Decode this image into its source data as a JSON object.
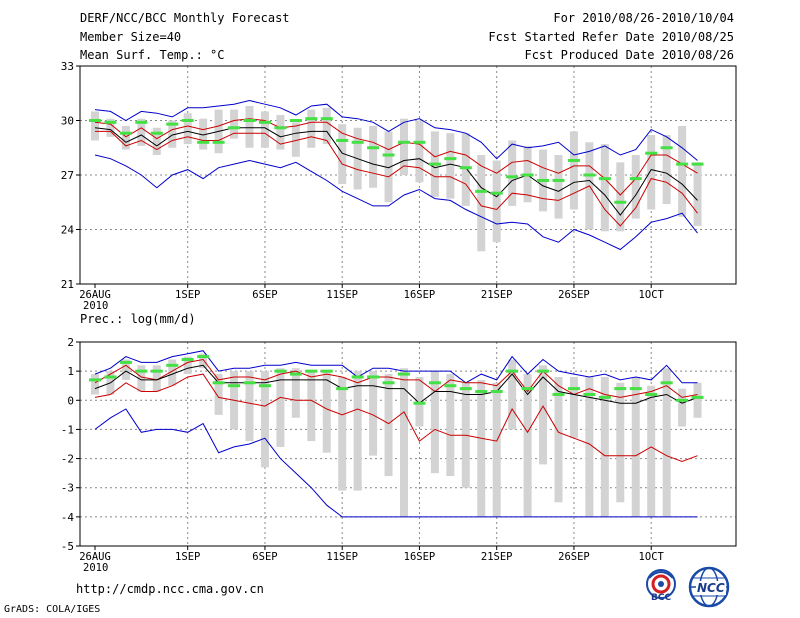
{
  "header": {
    "title": "DERF/NCC/BCC Monthly Forecast",
    "member_size": "Member Size=40",
    "panel1_label": "Mean Surf. Temp.: °C",
    "period": "For 2010/08/26-2010/10/04",
    "started": "Fcst Started Refer Date 2010/08/25",
    "produced": "Fcst Produced Date 2010/08/26"
  },
  "footer": {
    "url": "http://cmdp.ncc.cma.gov.cn",
    "grads": "GrADS: COLA/IGES",
    "logo1_text": "BCC",
    "logo2_text": "NCC"
  },
  "colors": {
    "box": "#d3d3d3",
    "median": "#44e044",
    "mean": "#000000",
    "sd": "#cc0000",
    "envelope": "#0000cc",
    "grid": "#888888"
  },
  "chart_data": [
    {
      "type": "line",
      "title": "Mean Surf. Temp.: °C",
      "xlabel": "",
      "ylabel": "",
      "ylim": [
        21,
        33
      ],
      "yticks": [
        21,
        24,
        27,
        30,
        33
      ],
      "xticks": [
        {
          "day": 0,
          "label": "26AUG",
          "sub": "2010"
        },
        {
          "day": 6,
          "label": "1SEP"
        },
        {
          "day": 11,
          "label": "6SEP"
        },
        {
          "day": 16,
          "label": "11SEP"
        },
        {
          "day": 21,
          "label": "16SEP"
        },
        {
          "day": 26,
          "label": "21SEP"
        },
        {
          "day": 31,
          "label": "26SEP"
        },
        {
          "day": 36,
          "label": "1OCT"
        }
      ],
      "x": [
        0,
        1,
        2,
        3,
        4,
        5,
        6,
        7,
        8,
        9,
        10,
        11,
        12,
        13,
        14,
        15,
        16,
        17,
        18,
        19,
        20,
        21,
        22,
        23,
        24,
        25,
        26,
        27,
        28,
        29,
        30,
        31,
        32,
        33,
        34,
        35,
        36,
        37,
        38,
        39
      ],
      "series": [
        {
          "name": "max",
          "values": [
            30.6,
            30.5,
            30.0,
            30.5,
            30.4,
            30.2,
            30.7,
            30.7,
            30.8,
            30.9,
            31.1,
            30.9,
            30.7,
            30.3,
            30.8,
            30.9,
            30.2,
            30.1,
            29.9,
            29.4,
            29.9,
            30.1,
            29.6,
            29.5,
            29.3,
            28.8,
            27.9,
            28.7,
            28.5,
            28.6,
            28.8,
            28.1,
            28.3,
            28.6,
            28.1,
            28.4,
            29.5,
            29.1,
            28.5,
            27.8
          ]
        },
        {
          "name": "mean+sd",
          "values": [
            29.9,
            29.8,
            29.1,
            29.6,
            29.0,
            29.5,
            29.7,
            29.5,
            29.7,
            30.0,
            30.1,
            30.0,
            29.6,
            29.7,
            29.9,
            29.9,
            29.3,
            29.0,
            28.8,
            28.4,
            28.8,
            28.7,
            28.0,
            28.3,
            28.1,
            27.5,
            27.1,
            27.7,
            27.8,
            27.4,
            27.1,
            27.5,
            27.5,
            26.8,
            25.9,
            26.8,
            28.1,
            28.1,
            27.6,
            27.1
          ]
        },
        {
          "name": "mean",
          "values": [
            29.6,
            29.5,
            28.8,
            29.2,
            28.6,
            29.2,
            29.4,
            29.2,
            29.4,
            29.6,
            29.6,
            29.6,
            29.1,
            29.3,
            29.4,
            29.4,
            28.2,
            27.9,
            27.6,
            27.4,
            27.8,
            27.9,
            27.4,
            27.6,
            27.4,
            26.3,
            25.8,
            26.7,
            27.0,
            26.4,
            26.1,
            26.6,
            26.7,
            25.9,
            24.8,
            25.9,
            27.3,
            27.1,
            26.5,
            25.6
          ]
        },
        {
          "name": "mean-sd",
          "values": [
            29.4,
            29.4,
            28.6,
            28.9,
            28.4,
            28.9,
            29.1,
            28.9,
            28.9,
            29.3,
            29.3,
            29.3,
            28.7,
            28.9,
            29.1,
            28.9,
            27.6,
            27.3,
            27.1,
            26.9,
            27.5,
            27.4,
            26.9,
            26.9,
            26.5,
            25.3,
            25.1,
            26.0,
            25.9,
            25.7,
            25.6,
            26.0,
            26.4,
            25.1,
            24.2,
            25.2,
            26.8,
            26.6,
            26.0,
            24.9
          ]
        },
        {
          "name": "min",
          "values": [
            28.1,
            27.9,
            27.5,
            27.0,
            26.3,
            27.0,
            27.3,
            26.8,
            27.4,
            27.6,
            27.8,
            27.6,
            27.4,
            27.7,
            27.2,
            26.7,
            26.1,
            25.7,
            25.3,
            25.3,
            25.9,
            26.2,
            25.7,
            25.6,
            25.1,
            24.7,
            24.3,
            24.4,
            24.3,
            23.6,
            23.3,
            24.0,
            23.7,
            23.3,
            22.9,
            23.6,
            24.4,
            24.6,
            24.9,
            23.8
          ]
        },
        {
          "name": "median",
          "values": [
            30.0,
            29.9,
            29.3,
            29.9,
            29.3,
            29.8,
            30.0,
            28.8,
            28.8,
            29.6,
            30.0,
            29.9,
            29.6,
            30.0,
            30.1,
            30.1,
            28.9,
            28.8,
            28.5,
            28.1,
            28.8,
            28.8,
            27.6,
            27.9,
            27.4,
            26.1,
            26.0,
            26.9,
            27.0,
            26.7,
            26.7,
            27.8,
            27.0,
            26.8,
            25.5,
            26.8,
            28.2,
            28.5,
            27.6,
            27.6
          ]
        },
        {
          "name": "box_upper",
          "values": [
            30.5,
            30.1,
            29.7,
            30.1,
            29.6,
            30.0,
            30.4,
            30.1,
            30.6,
            30.6,
            30.8,
            30.5,
            30.3,
            29.9,
            30.6,
            30.7,
            29.8,
            29.6,
            29.7,
            29.4,
            30.1,
            30.0,
            29.4,
            29.3,
            29.3,
            28.1,
            27.8,
            28.9,
            28.6,
            28.4,
            28.1,
            29.4,
            28.8,
            28.7,
            27.7,
            28.1,
            29.2,
            29.2,
            29.7,
            27.7
          ]
        },
        {
          "name": "box_lower",
          "values": [
            28.9,
            29.1,
            28.4,
            28.6,
            28.1,
            28.5,
            28.7,
            28.4,
            28.2,
            29.0,
            28.5,
            28.5,
            28.4,
            28.0,
            28.5,
            28.7,
            26.5,
            26.2,
            26.3,
            25.5,
            27.0,
            26.6,
            25.8,
            25.7,
            25.3,
            22.8,
            23.3,
            25.3,
            25.5,
            25.0,
            24.6,
            25.1,
            24.0,
            23.9,
            23.9,
            24.6,
            25.1,
            25.4,
            24.7,
            24.2
          ]
        }
      ]
    },
    {
      "type": "line",
      "title": "Prec.: log(mm/d)",
      "xlabel": "",
      "ylabel": "",
      "ylim": [
        -5,
        2
      ],
      "yticks": [
        -5,
        -4,
        -3,
        -2,
        -1,
        0,
        1,
        2
      ],
      "xticks": [
        {
          "day": 0,
          "label": "26AUG",
          "sub": "2010"
        },
        {
          "day": 6,
          "label": "1SEP"
        },
        {
          "day": 11,
          "label": "6SEP"
        },
        {
          "day": 16,
          "label": "11SEP"
        },
        {
          "day": 21,
          "label": "16SEP"
        },
        {
          "day": 26,
          "label": "21SEP"
        },
        {
          "day": 31,
          "label": "26SEP"
        },
        {
          "day": 36,
          "label": "1OCT"
        }
      ],
      "x": [
        0,
        1,
        2,
        3,
        4,
        5,
        6,
        7,
        8,
        9,
        10,
        11,
        12,
        13,
        14,
        15,
        16,
        17,
        18,
        19,
        20,
        21,
        22,
        23,
        24,
        25,
        26,
        27,
        28,
        29,
        30,
        31,
        32,
        33,
        34,
        35,
        36,
        37,
        38,
        39
      ],
      "series": [
        {
          "name": "max",
          "values": [
            0.9,
            1.1,
            1.5,
            1.3,
            1.3,
            1.5,
            1.6,
            1.7,
            1.0,
            1.1,
            1.1,
            1.2,
            1.2,
            1.3,
            1.2,
            1.2,
            1.2,
            0.8,
            1.1,
            1.1,
            1.0,
            1.0,
            1.0,
            1.0,
            0.6,
            0.9,
            0.7,
            1.5,
            0.9,
            1.4,
            1.0,
            0.9,
            0.8,
            0.9,
            0.7,
            0.8,
            0.7,
            1.2,
            0.6,
            0.6
          ]
        },
        {
          "name": "mean+sd",
          "values": [
            0.6,
            0.9,
            1.2,
            0.8,
            0.7,
            1.0,
            1.3,
            1.4,
            0.7,
            0.8,
            0.8,
            0.7,
            0.9,
            1.0,
            0.8,
            0.9,
            0.8,
            0.6,
            0.8,
            0.8,
            0.7,
            0.7,
            0.3,
            0.7,
            0.6,
            0.6,
            0.5,
            1.0,
            0.3,
            1.0,
            0.5,
            0.2,
            0.4,
            0.2,
            0.1,
            0.2,
            0.3,
            0.5,
            0.1,
            0.2
          ]
        },
        {
          "name": "mean",
          "values": [
            0.4,
            0.6,
            1.0,
            0.7,
            0.7,
            0.9,
            1.1,
            1.2,
            0.6,
            0.6,
            0.6,
            0.6,
            0.7,
            0.7,
            0.7,
            0.7,
            0.4,
            0.5,
            0.5,
            0.4,
            0.4,
            -0.1,
            0.3,
            0.3,
            0.2,
            0.2,
            0.3,
            0.9,
            0.2,
            0.8,
            0.3,
            0.2,
            0.1,
            0.0,
            -0.1,
            -0.1,
            0.1,
            0.2,
            -0.1,
            0.1
          ]
        },
        {
          "name": "mean-sd",
          "values": [
            0.1,
            0.2,
            0.6,
            0.3,
            0.3,
            0.5,
            0.8,
            0.9,
            0.1,
            0.0,
            -0.1,
            -0.2,
            0.1,
            0.0,
            0.0,
            -0.3,
            -0.5,
            -0.3,
            -0.5,
            -0.8,
            -0.4,
            -1.4,
            -1.0,
            -1.2,
            -1.2,
            -1.3,
            -1.4,
            -0.3,
            -1.1,
            -0.2,
            -1.1,
            -1.3,
            -1.5,
            -1.9,
            -1.9,
            -1.9,
            -1.6,
            -1.9,
            -2.1,
            -1.9
          ]
        },
        {
          "name": "min",
          "values": [
            -1.0,
            -0.6,
            -0.3,
            -1.1,
            -1.0,
            -1.0,
            -1.1,
            -0.8,
            -1.8,
            -1.6,
            -1.5,
            -1.3,
            -2.0,
            -2.5,
            -3.0,
            -3.6,
            -4.0,
            -4.0,
            -4.0,
            -4.0,
            -4.0,
            -4.0,
            -4.0,
            -4.0,
            -4.0,
            -4.0,
            -4.0,
            -4.0,
            -4.0,
            -4.0,
            -4.0,
            -4.0,
            -4.0,
            -4.0,
            -4.0,
            -4.0,
            -4.0,
            -4.0,
            -4.0,
            -4.0
          ]
        },
        {
          "name": "median",
          "values": [
            0.7,
            0.8,
            1.3,
            1.0,
            1.0,
            1.2,
            1.4,
            1.5,
            0.6,
            0.5,
            0.6,
            0.5,
            1.0,
            0.9,
            1.0,
            1.0,
            0.4,
            0.8,
            0.8,
            0.6,
            0.9,
            -0.1,
            0.6,
            0.5,
            0.4,
            0.3,
            0.3,
            1.0,
            0.4,
            1.0,
            0.2,
            0.4,
            0.2,
            0.1,
            0.4,
            0.4,
            0.2,
            0.6,
            0.0,
            0.1
          ]
        },
        {
          "name": "box_upper",
          "values": [
            0.9,
            1.0,
            1.4,
            1.2,
            1.2,
            1.4,
            1.5,
            1.6,
            0.9,
            1.0,
            1.0,
            1.0,
            1.1,
            1.1,
            1.0,
            1.0,
            0.8,
            1.0,
            1.0,
            0.9,
            1.1,
            0.8,
            1.0,
            0.9,
            0.6,
            0.7,
            0.6,
            1.4,
            0.9,
            1.2,
            0.8,
            0.8,
            0.8,
            0.8,
            0.6,
            0.8,
            0.5,
            1.1,
            0.4,
            0.6
          ]
        },
        {
          "name": "box_lower",
          "values": [
            0.2,
            0.2,
            0.7,
            0.3,
            0.3,
            0.5,
            0.9,
            1.1,
            -0.5,
            -1.0,
            -1.4,
            -2.3,
            -1.6,
            -0.6,
            -1.4,
            -1.8,
            -3.1,
            -3.1,
            -1.9,
            -2.6,
            -4.0,
            -0.9,
            -2.5,
            -2.6,
            -3.0,
            -4.0,
            -4.0,
            -1.0,
            -4.0,
            -2.2,
            -3.5,
            -1.3,
            -4.0,
            -4.0,
            -3.5,
            -4.0,
            -4.0,
            -4.0,
            -0.9,
            -0.6
          ]
        }
      ]
    }
  ]
}
